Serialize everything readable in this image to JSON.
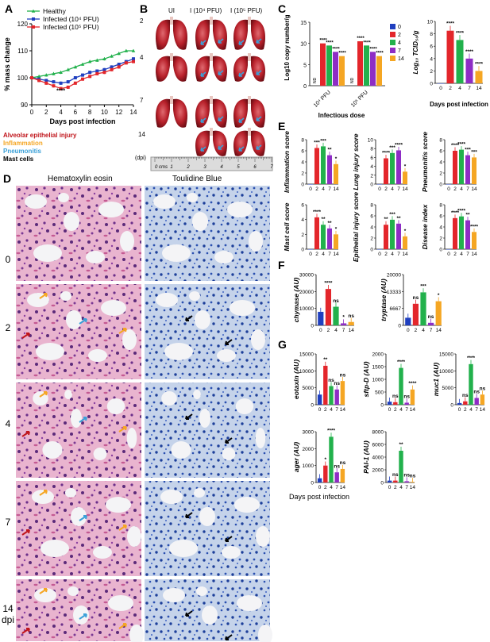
{
  "panels": {
    "A": {
      "label": "A",
      "legend": [
        "Healthy",
        "Infected (10⁴ PFU)",
        "Infected (10⁵ PFU)"
      ],
      "ylabel": "% mass change",
      "xlabel": "Days post infection",
      "annotation": "****",
      "colors": [
        "#22b14c",
        "#1f3fbf",
        "#e3262b"
      ]
    },
    "B": {
      "label": "B",
      "col_headers": [
        "UI",
        "I (10⁴ PFU)",
        "I (10⁵ PFU)"
      ],
      "row_labels": [
        "2",
        "4",
        "7",
        "14"
      ],
      "dpi_label": "(dpi)",
      "ruler_labels": [
        "0 cms",
        "1",
        "2",
        "3",
        "4",
        "5",
        "6",
        "7"
      ]
    },
    "C": {
      "label": "C",
      "ylabel_left": "Log10 copy number/g",
      "xlabel_left": "Infectious dose",
      "groups": [
        "10⁴ PFU",
        "10⁵ PFU"
      ],
      "nd": "ND",
      "legend": [
        "0",
        "2",
        "4",
        "7",
        "14"
      ],
      "ylabel_right": "Log₁₀ TCID₅₀/g",
      "xlabel_right": "Days post infection"
    },
    "D": {
      "label": "D",
      "legend": [
        {
          "text": "Alveolar epithelial injury",
          "color": "#c0151b"
        },
        {
          "text": "Inflammation",
          "color": "#f5a623"
        },
        {
          "text": "Pneumonitis",
          "color": "#3aa0d8"
        },
        {
          "text": "Mast cells",
          "color": "#000000"
        }
      ],
      "col_headers": [
        "Hematoxylin eosin",
        "Toulidine Blue"
      ],
      "row_labels": [
        "0",
        "2",
        "4",
        "7",
        "14\ndpi"
      ]
    },
    "E": {
      "label": "E",
      "charts": [
        "Inflammation score",
        "Lung injury score",
        "Pneumonitis score",
        "Mast cell score",
        "Epithelial injury score",
        "Disease index"
      ]
    },
    "F": {
      "label": "F",
      "charts": [
        "chymase (AU)",
        "tryptase (AU)"
      ]
    },
    "G": {
      "label": "G",
      "charts": [
        "eotaxin (AU)",
        "sftp-D (AU)",
        "muc1 (AU)",
        "ager (AU)",
        "PAI-1 (AU)"
      ],
      "xlabel": "Days  post infection"
    }
  },
  "colors": {
    "d0": "#1f3fbf",
    "d2": "#e3262b",
    "d4": "#22b14c",
    "d7": "#8e2dc5",
    "d14": "#f5a623"
  },
  "chart_data": [
    {
      "id": "A",
      "type": "line",
      "title": "",
      "xlabel": "Days post infection",
      "ylabel": "% mass change",
      "x": [
        0,
        1,
        2,
        3,
        4,
        5,
        6,
        7,
        8,
        9,
        10,
        11,
        12,
        13,
        14
      ],
      "ylim": [
        90,
        120
      ],
      "series": [
        {
          "name": "Healthy",
          "values": [
            100,
            100.5,
            101,
            101.5,
            102,
            103,
            104,
            105,
            106,
            106.5,
            107,
            108,
            109,
            110,
            110
          ]
        },
        {
          "name": "Infected (10⁴ PFU)",
          "values": [
            100,
            99.5,
            99,
            98.5,
            98,
            98.5,
            100,
            101,
            102,
            102.5,
            103,
            104,
            105,
            106,
            107
          ]
        },
        {
          "name": "Infected (10⁵ PFU)",
          "values": [
            100,
            99,
            98,
            97,
            96,
            96.5,
            98,
            99.5,
            100.5,
            101.5,
            102,
            103,
            104,
            105.5,
            106
          ]
        }
      ]
    },
    {
      "id": "C-left",
      "type": "bar",
      "categories": [
        "10⁴ PFU",
        "10⁵ PFU"
      ],
      "ylabel": "Log10 copy number/g",
      "ylim": [
        0,
        15
      ],
      "series": [
        {
          "name": "0",
          "values": [
            0,
            0
          ]
        },
        {
          "name": "2",
          "values": [
            10,
            10.5
          ]
        },
        {
          "name": "4",
          "values": [
            9.5,
            9.5
          ]
        },
        {
          "name": "7",
          "values": [
            8,
            8
          ]
        },
        {
          "name": "14",
          "values": [
            7,
            7
          ]
        }
      ]
    },
    {
      "id": "C-right",
      "type": "bar",
      "categories": [
        "0",
        "2",
        "4",
        "7",
        "14"
      ],
      "ylabel": "Log₁₀ TCID₅₀/g",
      "xlabel": "Days post infection",
      "ylim": [
        0,
        10
      ],
      "values": [
        0,
        8.5,
        7,
        4,
        2
      ]
    },
    {
      "id": "E-inflammation",
      "type": "bar",
      "categories": [
        "0",
        "2",
        "4",
        "7",
        "14"
      ],
      "ylabel": "Inflammation score",
      "ylim": [
        0,
        8
      ],
      "values": [
        0,
        6.5,
        6.8,
        5.2,
        3.6
      ]
    },
    {
      "id": "E-lung-injury",
      "type": "bar",
      "categories": [
        "0",
        "2",
        "4",
        "7",
        "14"
      ],
      "ylabel": "Lung injury score",
      "ylim": [
        0,
        10
      ],
      "values": [
        0,
        5.8,
        7,
        7.6,
        2.8
      ]
    },
    {
      "id": "E-pneumonitis",
      "type": "bar",
      "categories": [
        "0",
        "2",
        "4",
        "7",
        "14"
      ],
      "ylabel": "Pneumonitis score",
      "ylim": [
        0,
        8
      ],
      "values": [
        0,
        6,
        6.2,
        5.2,
        4.8
      ]
    },
    {
      "id": "E-mast-cell",
      "type": "bar",
      "categories": [
        "0",
        "2",
        "4",
        "7",
        "14"
      ],
      "ylabel": "Mast cell score",
      "ylim": [
        0,
        6
      ],
      "values": [
        0,
        4.3,
        3.3,
        2.8,
        2
      ]
    },
    {
      "id": "E-epithelial",
      "type": "bar",
      "categories": [
        "0",
        "2",
        "4",
        "7",
        "14"
      ],
      "ylabel": "Epithelial injury score",
      "ylim": [
        0,
        8
      ],
      "values": [
        0,
        4.4,
        5.3,
        4.6,
        2.3
      ]
    },
    {
      "id": "E-disease-index",
      "type": "bar",
      "categories": [
        "0",
        "2",
        "4",
        "7",
        "14"
      ],
      "ylabel": "Disease index",
      "ylim": [
        0,
        8
      ],
      "values": [
        0,
        5.6,
        5.9,
        5.2,
        3.1
      ]
    },
    {
      "id": "F-chymase",
      "type": "bar",
      "categories": [
        "0",
        "2",
        "4",
        "7",
        "14"
      ],
      "ylabel": "chymase (AU)",
      "ylim": [
        0,
        30000
      ],
      "values": [
        8000,
        21500,
        11000,
        1200,
        2000
      ]
    },
    {
      "id": "F-tryptase",
      "type": "bar",
      "categories": [
        "0",
        "2",
        "4",
        "7",
        "14"
      ],
      "ylabel": "tryptase (AU)",
      "ylim": [
        0,
        20000
      ],
      "values": [
        3000,
        8500,
        13000,
        1000,
        9500
      ]
    },
    {
      "id": "G-eotaxin",
      "type": "bar",
      "categories": [
        "0",
        "2",
        "4",
        "7",
        "14"
      ],
      "ylabel": "eotaxin (AU)",
      "ylim": [
        0,
        15000
      ],
      "values": [
        3000,
        11500,
        5500,
        4500,
        7000
      ]
    },
    {
      "id": "G-sftp-D",
      "type": "bar",
      "categories": [
        "0",
        "2",
        "4",
        "7",
        "14"
      ],
      "ylabel": "sftp-D (AU)",
      "ylim": [
        0,
        2000
      ],
      "values": [
        120,
        100,
        1450,
        80,
        600
      ]
    },
    {
      "id": "G-muc1",
      "type": "bar",
      "categories": [
        "0",
        "2",
        "4",
        "7",
        "14"
      ],
      "ylabel": "muc1 (AU)",
      "ylim": [
        0,
        15000
      ],
      "values": [
        500,
        1000,
        12000,
        2000,
        3000
      ]
    },
    {
      "id": "G-ager",
      "type": "bar",
      "categories": [
        "0",
        "2",
        "4",
        "7",
        "14"
      ],
      "ylabel": "ager (AU)",
      "ylim": [
        0,
        3000
      ],
      "values": [
        250,
        1000,
        2700,
        600,
        800
      ]
    },
    {
      "id": "G-PAI-1",
      "type": "bar",
      "categories": [
        "0",
        "2",
        "4",
        "7",
        "14"
      ],
      "ylabel": "PAI-1 (AU)",
      "ylim": [
        0,
        8000
      ],
      "values": [
        300,
        300,
        5000,
        200,
        100
      ]
    }
  ],
  "bar_annotations": {
    "C-left": [
      "",
      "****",
      "****",
      "****",
      "****",
      "",
      "****",
      "****",
      "****",
      "****"
    ],
    "C-right": [
      "",
      "****",
      "****",
      "****",
      "****"
    ],
    "E-inflammation": [
      "",
      "***",
      "***",
      "**",
      "*"
    ],
    "E-lung-injury": [
      "",
      "****",
      "***",
      "****",
      "*"
    ],
    "E-pneumonitis": [
      "",
      "****",
      "****",
      "***",
      "***"
    ],
    "E-mast-cell": [
      "",
      "****",
      "**",
      "**",
      "*"
    ],
    "E-epithelial": [
      "",
      "**",
      "***",
      "**",
      "*"
    ],
    "E-disease-index": [
      "",
      "****",
      "****",
      "**",
      "****"
    ],
    "F-chymase": [
      "",
      "****",
      "ns",
      "*",
      "ns"
    ],
    "F-tryptase": [
      "",
      "ns",
      "***",
      "ns",
      "*"
    ],
    "G-eotaxin": [
      "",
      "**",
      "ns",
      "ns",
      "ns"
    ],
    "G-sftp-D": [
      "",
      "ns",
      "****",
      "ns",
      "****"
    ],
    "G-muc1": [
      "",
      "ns",
      "****",
      "ns",
      "ns"
    ],
    "G-ager": [
      "",
      "*",
      "****",
      "ns",
      "ns"
    ],
    "G-PAI-1": [
      "",
      "ns",
      "**",
      "ns",
      "ns"
    ]
  }
}
